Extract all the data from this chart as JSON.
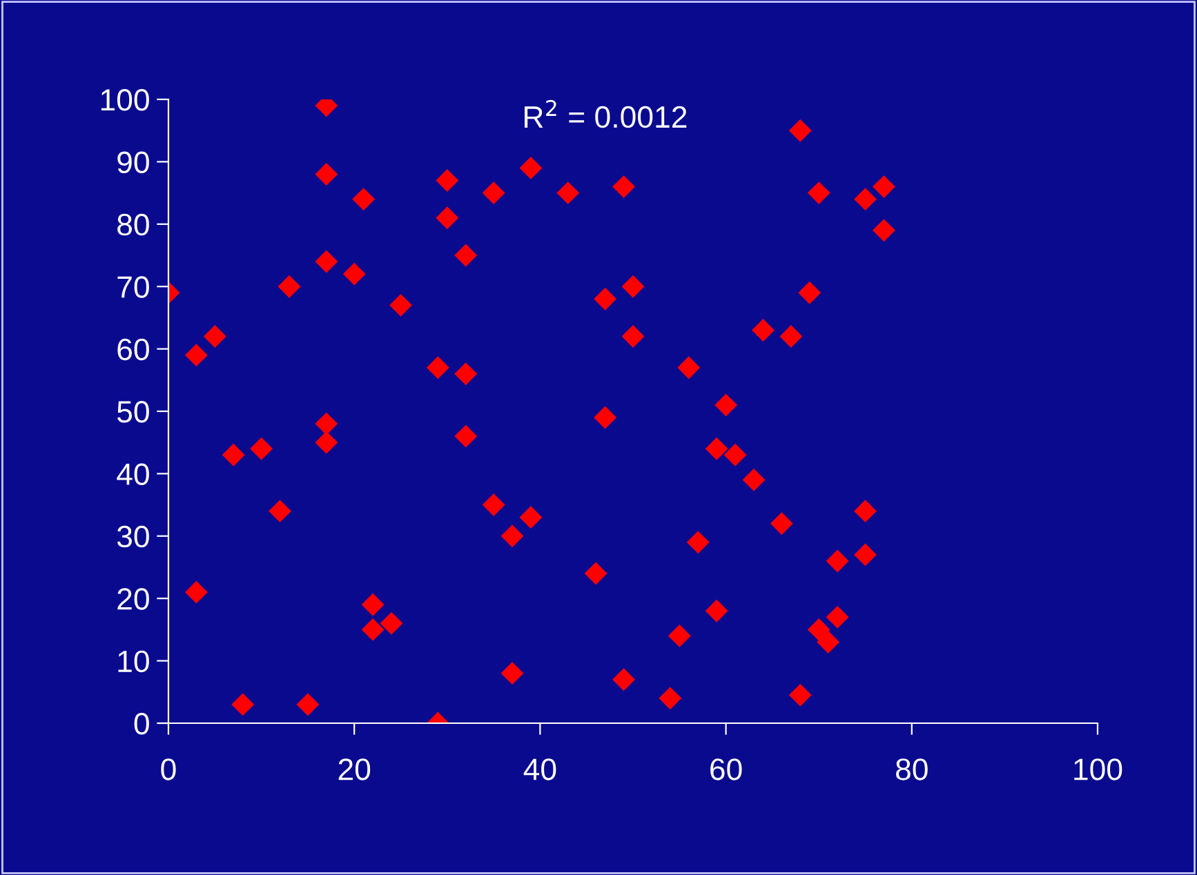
{
  "chart_data": {
    "type": "scatter",
    "annotations": [
      "R$^{2}$ = 0.0012"
    ],
    "x": [
      0,
      3,
      5,
      3,
      7,
      10,
      8,
      12,
      13,
      15,
      17,
      17,
      17,
      17,
      17,
      20,
      21,
      22,
      22,
      24,
      25,
      29,
      29,
      30,
      30,
      32,
      32,
      32,
      35,
      35,
      37,
      37,
      39,
      39,
      43,
      46,
      47,
      47,
      49,
      49,
      50,
      50,
      54,
      55,
      56,
      57,
      59,
      59,
      60,
      61,
      63,
      64,
      66,
      67,
      68,
      68,
      69,
      70,
      70,
      71,
      72,
      72,
      75,
      75,
      75,
      77,
      77
    ],
    "series": [
      {
        "color": "#ff0000",
        "values": [
          69,
          59,
          62,
          21,
          43,
          44,
          3,
          34,
          70,
          3,
          99,
          88,
          74,
          48,
          45,
          72,
          84,
          19,
          15,
          16,
          67,
          57,
          0,
          87,
          81,
          75,
          56,
          46,
          85,
          35,
          30,
          8,
          89,
          33,
          85,
          24,
          68,
          49,
          86,
          7,
          70,
          62,
          4,
          14,
          57,
          29,
          44,
          18,
          51,
          43,
          39,
          63,
          32,
          62,
          95,
          4.5,
          69,
          85,
          15,
          13,
          26,
          17,
          84,
          34,
          27,
          86,
          79
        ]
      }
    ],
    "xlim": [
      0,
      100
    ],
    "xticks": [
      0,
      20,
      40,
      60,
      80,
      100
    ],
    "ylim": [
      0,
      100
    ],
    "yticks": [
      0,
      10,
      20,
      30,
      40,
      50,
      60,
      70,
      80,
      90,
      100
    ],
    "marker": "diamond",
    "grid": false,
    "legend": false
  }
}
